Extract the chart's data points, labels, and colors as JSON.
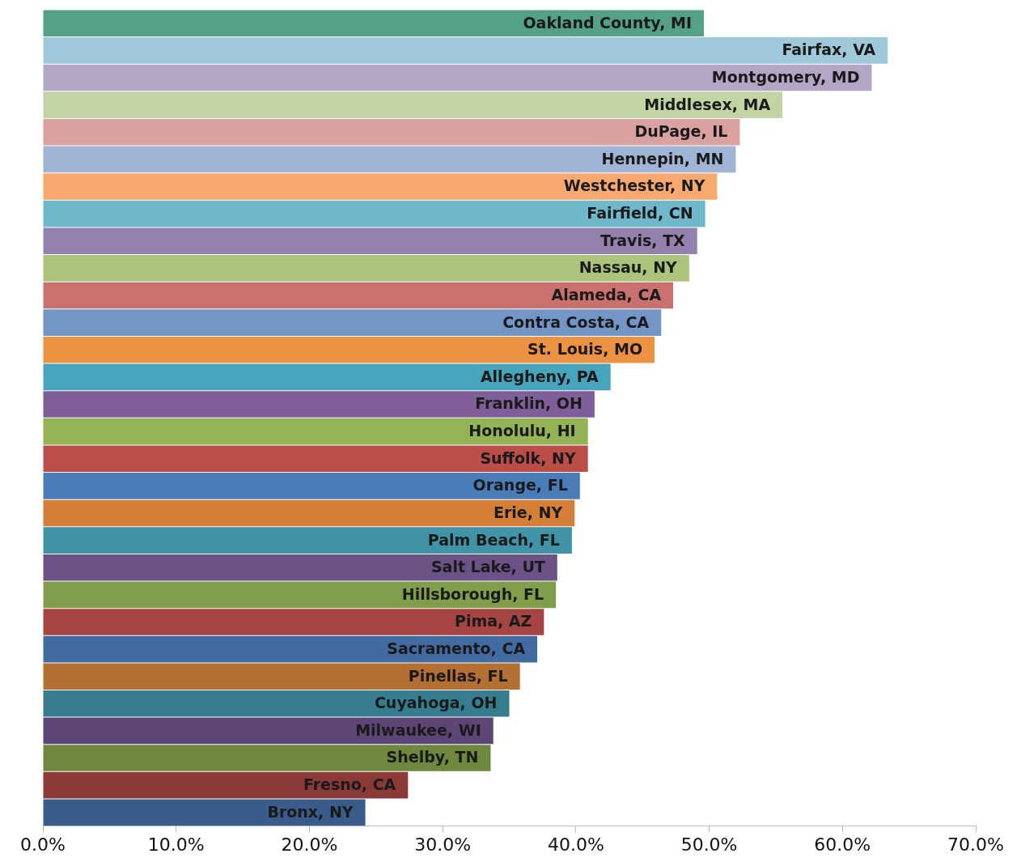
{
  "chart_data": {
    "type": "bar",
    "orientation": "horizontal",
    "categories": [
      "Oakland County, MI",
      "Fairfax, VA",
      "Montgomery, MD",
      "Middlesex, MA",
      "DuPage, IL",
      "Hennepin, MN",
      "Westchester, NY",
      "Fairfield, CN",
      "Travis, TX",
      "Nassau, NY",
      "Alameda, CA",
      "Contra Costa, CA",
      "St. Louis, MO",
      "Allegheny, PA",
      "Franklin, OH",
      "Honolulu, HI",
      "Suffolk, NY",
      "Orange, FL",
      "Erie, NY",
      "Palm Beach, FL",
      "Salt Lake, UT",
      "Hillsborough, FL",
      "Pima, AZ",
      "Sacramento, CA",
      "Pinellas, FL",
      "Cuyahoga, OH",
      "Milwaukee, WI",
      "Shelby, TN",
      "Fresno, CA",
      "Bronx, NY"
    ],
    "values": [
      49.6,
      63.4,
      62.2,
      55.5,
      52.3,
      52.0,
      50.6,
      49.7,
      49.1,
      48.5,
      47.3,
      46.4,
      45.9,
      42.6,
      41.4,
      40.9,
      40.9,
      40.3,
      39.9,
      39.7,
      38.6,
      38.5,
      37.6,
      37.1,
      35.8,
      35.0,
      33.8,
      33.6,
      27.4,
      24.2
    ],
    "colors": [
      "#55a088",
      "#9fc9da",
      "#b2a6c4",
      "#c2d4a4",
      "#d9a2a1",
      "#a0b4d6",
      "#f8a96f",
      "#6fb7cb",
      "#9481ae",
      "#abc47c",
      "#c9716f",
      "#7396c6",
      "#ed9142",
      "#46a5bd",
      "#7f5e9a",
      "#94b355",
      "#bc4e4a",
      "#4a7cb8",
      "#d57e38",
      "#4193a8",
      "#6c5287",
      "#819e4a",
      "#a64541",
      "#426ca1",
      "#b46f32",
      "#377d90",
      "#5d4675",
      "#6e883f",
      "#8b3a37",
      "#395c8a"
    ],
    "xlim": [
      0,
      70
    ],
    "xticks": [
      {
        "value": 0,
        "label": "0.0%"
      },
      {
        "value": 10,
        "label": "10.0%"
      },
      {
        "value": 20,
        "label": "20.0%"
      },
      {
        "value": 30,
        "label": "30.0%"
      },
      {
        "value": 40,
        "label": "40.0%"
      },
      {
        "value": 50,
        "label": "50.0%"
      },
      {
        "value": 60,
        "label": "60.0%"
      },
      {
        "value": 70,
        "label": "70.0%"
      }
    ],
    "grid": false,
    "legend": false
  }
}
